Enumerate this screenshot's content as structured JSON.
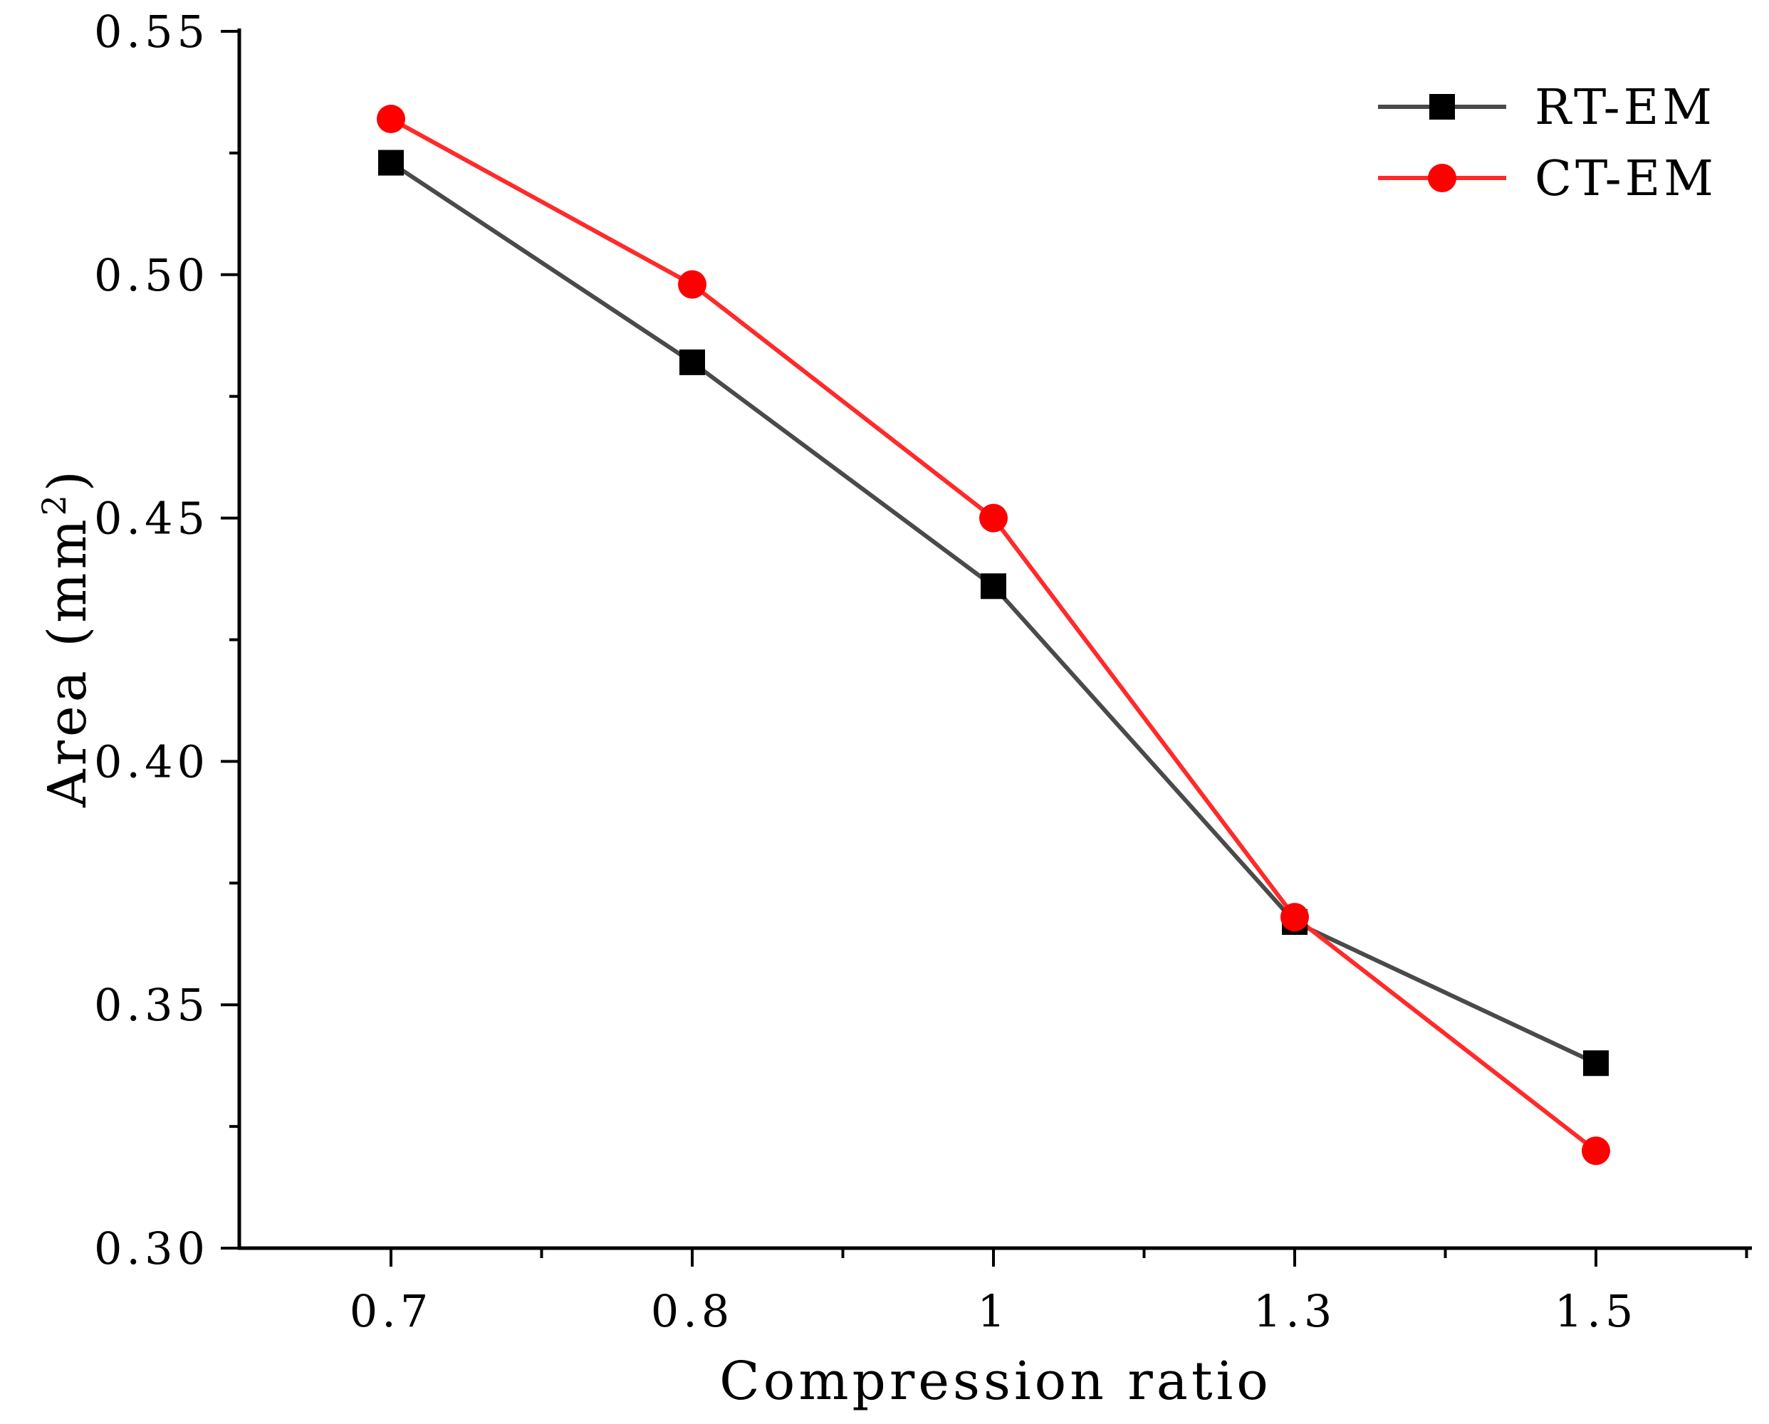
{
  "chart_data": {
    "type": "line",
    "title": "",
    "categories": [
      "0.7",
      "0.8",
      "1",
      "1.3",
      "1.5"
    ],
    "xlabel": "Compression ratio",
    "ylabel": "Area (mm",
    "ylabel_unit_exponent": "2",
    "ylabel_close": ")",
    "ylim": [
      0.3,
      0.55
    ],
    "yticks": [
      "0.30",
      "0.35",
      "0.40",
      "0.45",
      "0.50",
      "0.55"
    ],
    "grid": false,
    "legend_position": "top-right",
    "series": [
      {
        "name": "RT-EM",
        "values": [
          0.523,
          0.482,
          0.436,
          0.367,
          0.338
        ],
        "color": "#4a4a4a",
        "marker_color": "#000000",
        "marker": "square"
      },
      {
        "name": "CT-EM",
        "values": [
          0.532,
          0.498,
          0.45,
          0.368,
          0.32
        ],
        "color": "#ff2a2a",
        "marker_color": "#ff0000",
        "marker": "circle"
      }
    ]
  }
}
